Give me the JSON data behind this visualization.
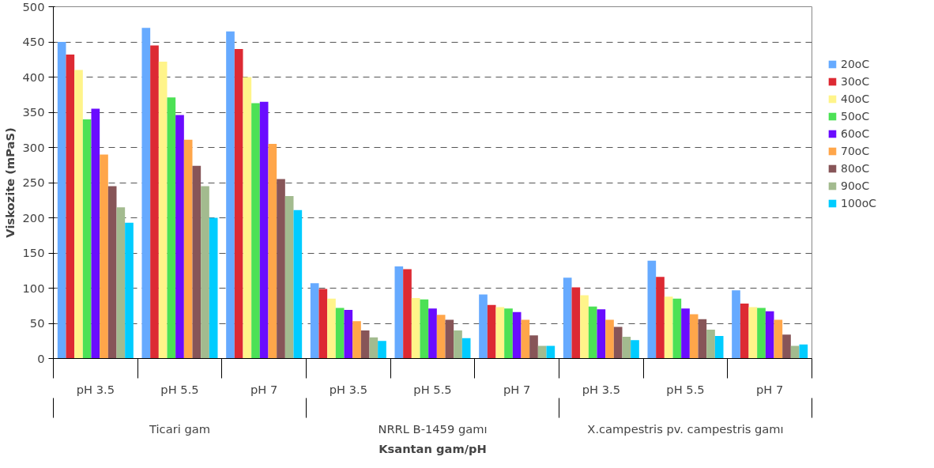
{
  "chart_data": {
    "type": "bar",
    "xlabel": "Ksantan gam/pH",
    "ylabel": "Viskozite (mPaS)",
    "categories": [
      "pH 3.5",
      "pH 5.5",
      "pH 7",
      "pH 3.5",
      "pH 5.5",
      "pH 7",
      "pH 3.5",
      "pH 5.5",
      "pH 7"
    ],
    "annotations": [
      "Ticari gam",
      "NRRL B-1459 gamı",
      "X.campestris pv. campestris gamı"
    ],
    "series": [
      {
        "name": "20oC",
        "color": "#66aaff",
        "values": [
          450,
          470,
          465,
          107,
          131,
          91,
          115,
          139,
          97
        ]
      },
      {
        "name": "30oC",
        "color": "#dd2a33",
        "values": [
          432,
          445,
          440,
          99,
          127,
          76,
          101,
          116,
          78
        ]
      },
      {
        "name": "40oC",
        "color": "#fff48a",
        "values": [
          410,
          422,
          400,
          85,
          86,
          73,
          90,
          88,
          73
        ]
      },
      {
        "name": "50oC",
        "color": "#4ce155",
        "values": [
          340,
          371,
          363,
          72,
          84,
          71,
          74,
          85,
          72
        ]
      },
      {
        "name": "60oC",
        "color": "#6a0cff",
        "values": [
          355,
          346,
          365,
          69,
          71,
          66,
          70,
          71,
          67
        ]
      },
      {
        "name": "70oC",
        "color": "#ffa64a",
        "values": [
          290,
          311,
          305,
          53,
          62,
          55,
          55,
          63,
          55
        ]
      },
      {
        "name": "80oC",
        "color": "#875558",
        "values": [
          245,
          274,
          255,
          40,
          55,
          33,
          45,
          56,
          34
        ]
      },
      {
        "name": "90oC",
        "color": "#a3bb8f",
        "values": [
          215,
          245,
          231,
          30,
          40,
          18,
          31,
          41,
          18
        ]
      },
      {
        "name": "100oC",
        "color": "#00ccff",
        "values": [
          193,
          200,
          211,
          25,
          29,
          18,
          26,
          32,
          20
        ]
      }
    ],
    "ylim": [
      0,
      500
    ],
    "yticks": [
      0,
      50,
      100,
      150,
      200,
      250,
      300,
      350,
      400,
      450,
      500
    ],
    "grid": "y",
    "legend": "right"
  }
}
